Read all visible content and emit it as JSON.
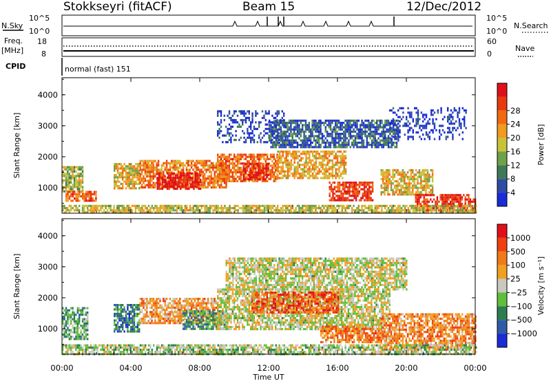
{
  "header": {
    "station": "Stokkseyri (fitACF)",
    "beam": "Beam 15",
    "date": "12/Dec/2012"
  },
  "strips": {
    "nsky_label": "N.Sky",
    "nsky_ticks": [
      "10^5",
      "10^0"
    ],
    "nsearch_label": "N.Search",
    "freq_label": "Freq.",
    "freq_unit": "[MHz]",
    "freq_ticks": [
      "18",
      "8"
    ],
    "nave_label": "Nave",
    "nave_ticks": [
      "60",
      "0"
    ],
    "cpid_label": "CPID",
    "cpid_value": "normal (fast) 151"
  },
  "colors": {
    "power": [
      "#1a2bd8",
      "#2f4aa6",
      "#3e7a55",
      "#6fa04a",
      "#c8c23a",
      "#f09a20",
      "#f06a10",
      "#e83a0c",
      "#e0101a"
    ],
    "velocity": [
      "#1a2bd8",
      "#2f5aa6",
      "#2e7d4f",
      "#5fbf3a",
      "#c8c8c0",
      "#f0a020",
      "#f07a18",
      "#f04010",
      "#e0101a"
    ]
  },
  "chart_data": [
    {
      "type": "heatmap",
      "title": "Power",
      "xlabel": "",
      "ylabel": "Slant Range [km]",
      "x_ticks": [
        "00:00",
        "04:00",
        "08:00",
        "12:00",
        "16:00",
        "20:00",
        "00:00"
      ],
      "y_ticks": [
        "1000",
        "2000",
        "3000",
        "4000"
      ],
      "ylim": [
        180,
        4550
      ],
      "colorbar_label": "Power [dB]",
      "colorbar_ticks": [
        "4",
        "8",
        "12",
        "16",
        "20",
        "24",
        "28"
      ],
      "regions": [
        {
          "t": [
            0.0,
            1.2
          ],
          "r": [
            900,
            1700
          ],
          "v": 0.45
        },
        {
          "t": [
            0.2,
            2.0
          ],
          "r": [
            600,
            900
          ],
          "v": 0.75
        },
        {
          "t": [
            3.0,
            4.5
          ],
          "r": [
            1000,
            1800
          ],
          "v": 0.55
        },
        {
          "t": [
            4.5,
            9.5
          ],
          "r": [
            1000,
            1900
          ],
          "v": 0.7
        },
        {
          "t": [
            5.5,
            8.0
          ],
          "r": [
            1000,
            1500
          ],
          "v": 0.95
        },
        {
          "t": [
            9.0,
            12.5
          ],
          "r": [
            1200,
            2100
          ],
          "v": 0.72
        },
        {
          "t": [
            10.5,
            12.0
          ],
          "r": [
            1300,
            1800
          ],
          "v": 0.9
        },
        {
          "t": [
            12.5,
            16.5
          ],
          "r": [
            1300,
            2200
          ],
          "v": 0.6
        },
        {
          "t": [
            15.5,
            18.0
          ],
          "r": [
            600,
            1200
          ],
          "v": 0.85
        },
        {
          "t": [
            12.0,
            19.5
          ],
          "r": [
            2300,
            3200
          ],
          "v": 0.2
        },
        {
          "t": [
            9.0,
            13.0
          ],
          "r": [
            2500,
            3500
          ],
          "v": 0.12
        },
        {
          "t": [
            18.5,
            21.5
          ],
          "r": [
            800,
            1600
          ],
          "v": 0.55
        },
        {
          "t": [
            20.5,
            24.0
          ],
          "r": [
            300,
            800
          ],
          "v": 0.9
        },
        {
          "t": [
            19.0,
            23.5
          ],
          "r": [
            2600,
            3600
          ],
          "v": 0.08
        },
        {
          "t": [
            0.0,
            24.0
          ],
          "r": [
            180,
            450
          ],
          "v": 0.5
        }
      ]
    },
    {
      "type": "heatmap",
      "title": "Velocity",
      "xlabel": "Time UT",
      "ylabel": "Slant Range [km]",
      "x_ticks": [
        "00:00",
        "04:00",
        "08:00",
        "12:00",
        "16:00",
        "20:00",
        "00:00"
      ],
      "y_ticks": [
        "1000",
        "2000",
        "3000",
        "4000"
      ],
      "ylim": [
        180,
        4550
      ],
      "colorbar_label": "Velocity [m s⁻¹]",
      "colorbar_ticks": [
        "1000",
        "500",
        "100",
        "25",
        "−25",
        "−100",
        "−500",
        "−1000"
      ],
      "regions": [
        {
          "t": [
            0.0,
            1.5
          ],
          "r": [
            700,
            1700
          ],
          "v": 0.35
        },
        {
          "t": [
            3.0,
            4.5
          ],
          "r": [
            900,
            1800
          ],
          "v": 0.25
        },
        {
          "t": [
            4.5,
            9.0
          ],
          "r": [
            1200,
            2000
          ],
          "v": 0.65
        },
        {
          "t": [
            7.0,
            9.5
          ],
          "r": [
            1000,
            1600
          ],
          "v": 0.3
        },
        {
          "t": [
            9.0,
            19.0
          ],
          "r": [
            1000,
            2300
          ],
          "v": 0.5
        },
        {
          "t": [
            11.0,
            16.0
          ],
          "r": [
            1500,
            2200
          ],
          "v": 0.8
        },
        {
          "t": [
            15.0,
            18.5
          ],
          "r": [
            600,
            1100
          ],
          "v": 0.72
        },
        {
          "t": [
            18.5,
            24.0
          ],
          "r": [
            300,
            1500
          ],
          "v": 0.7
        },
        {
          "t": [
            9.5,
            20.0
          ],
          "r": [
            2300,
            3300
          ],
          "v": 0.5
        },
        {
          "t": [
            0.0,
            24.0
          ],
          "r": [
            180,
            500
          ],
          "v": 0.45
        }
      ]
    }
  ]
}
